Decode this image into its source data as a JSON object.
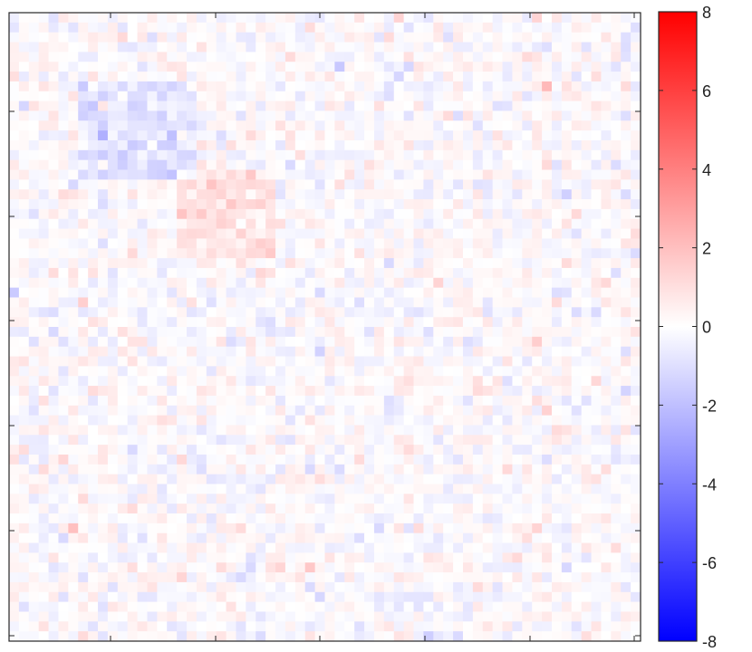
{
  "chart_data": {
    "type": "heatmap",
    "title": "",
    "xlabel": "",
    "ylabel": "",
    "grid_size": [
      64,
      64
    ],
    "value_range": [
      -8,
      8
    ],
    "colormap": {
      "low": "#0000ff",
      "mid": "#ffffff",
      "high": "#ff0000"
    },
    "colorbar": {
      "position": "right",
      "tick_values": [
        8,
        6,
        4,
        2,
        0,
        -2,
        -4,
        -6,
        -8
      ],
      "tick_labels": [
        "8",
        "6",
        "4",
        "2",
        "0",
        "-2",
        "-4",
        "-6",
        "-8"
      ]
    },
    "x_tick_labels": [],
    "y_tick_labels": [],
    "description_values": {
      "noise_std": 0.45,
      "blue_patch_value": -0.8,
      "red_patch_value": 0.9,
      "outlier_value": 2.2
    }
  }
}
